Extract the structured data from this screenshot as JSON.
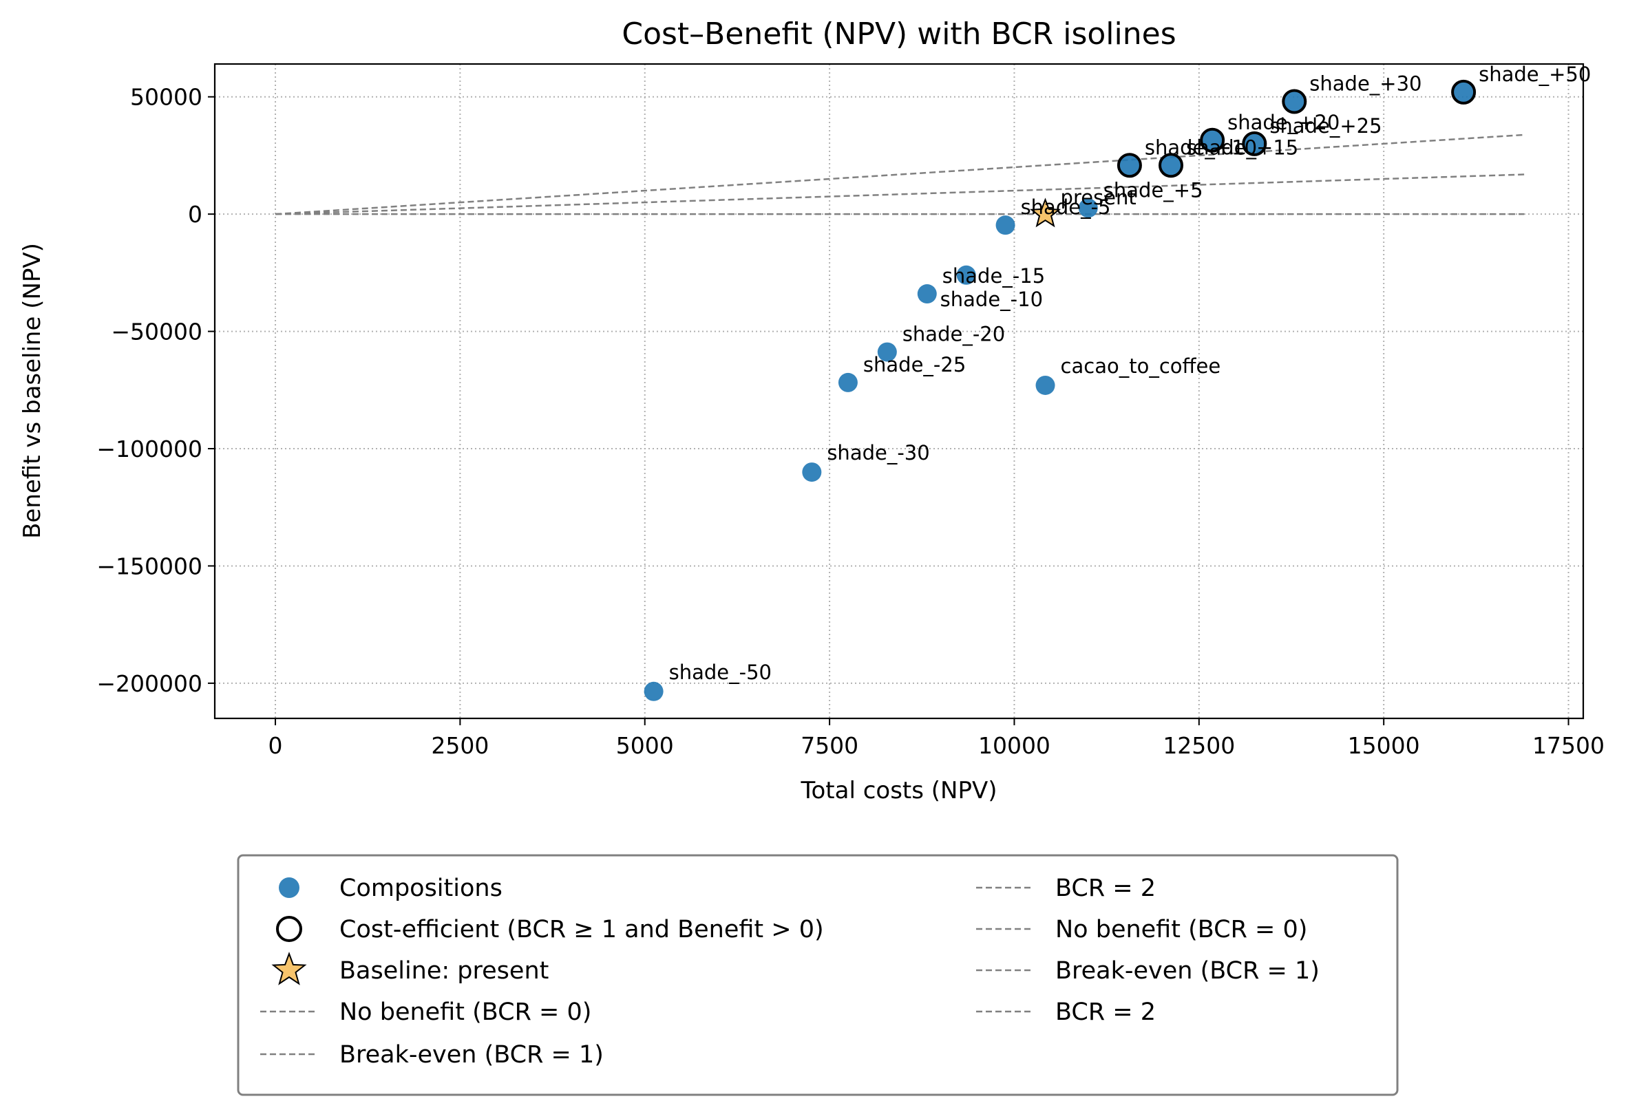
{
  "chart_data": {
    "type": "scatter",
    "title": "Cost–Benefit (NPV) with BCR isolines",
    "xlabel": "Total costs (NPV)",
    "ylabel": "Benefit vs baseline (NPV)",
    "xlim": [
      -820,
      17700
    ],
    "ylim": [
      -215000,
      64000
    ],
    "xticks": [
      0,
      2500,
      5000,
      7500,
      10000,
      12500,
      15000,
      17500
    ],
    "xtick_labels": [
      "0",
      "2500",
      "5000",
      "7500",
      "10000",
      "12500",
      "15000",
      "17500"
    ],
    "yticks": [
      50000,
      0,
      -50000,
      -100000,
      -150000,
      -200000
    ],
    "ytick_labels": [
      "50000",
      "0",
      "−50000",
      "−100000",
      "−150000",
      "−200000"
    ],
    "grid": true,
    "legend_position": "bottom",
    "colors": {
      "points": "#1f77b4",
      "edge_efficient": "#000000",
      "baseline_star": "#f7c46c",
      "isoline": "#808080",
      "grid": "#b0b0b0"
    },
    "points": [
      {
        "label": "shade_-50",
        "x": 5120,
        "y": -203500,
        "efficient": false
      },
      {
        "label": "shade_-30",
        "x": 7260,
        "y": -110000,
        "efficient": false
      },
      {
        "label": "shade_-25",
        "x": 7750,
        "y": -71800,
        "efficient": false
      },
      {
        "label": "shade_-20",
        "x": 8280,
        "y": -58800,
        "efficient": false
      },
      {
        "label": "shade_-15",
        "x": 8820,
        "y": -34000,
        "efficient": false
      },
      {
        "label": "shade_-10",
        "x": 9350,
        "y": -26000,
        "efficient": false
      },
      {
        "label": "shade_-5",
        "x": 9880,
        "y": -4700,
        "efficient": false
      },
      {
        "label": "shade_+5",
        "x": 11000,
        "y": 2600,
        "efficient": false
      },
      {
        "label": "cacao_to_coffee",
        "x": 10420,
        "y": -73000,
        "efficient": false
      },
      {
        "label": "shade_+10",
        "x": 11560,
        "y": 20800,
        "efficient": true
      },
      {
        "label": "shade_+15",
        "x": 12120,
        "y": 20800,
        "efficient": true
      },
      {
        "label": "shade_+20",
        "x": 12680,
        "y": 31500,
        "efficient": true
      },
      {
        "label": "shade_+25",
        "x": 13250,
        "y": 30000,
        "efficient": true
      },
      {
        "label": "shade_+30",
        "x": 13790,
        "y": 48000,
        "efficient": true
      },
      {
        "label": "shade_+50",
        "x": 16080,
        "y": 52000,
        "efficient": true
      }
    ],
    "baseline": {
      "label": "present",
      "x": 10420,
      "y": 0
    },
    "isolines": [
      {
        "name": "No benefit (BCR = 0)",
        "bcr": 0
      },
      {
        "name": "Break-even (BCR = 1)",
        "bcr": 1
      },
      {
        "name": "BCR = 2",
        "bcr": 2
      }
    ],
    "isoline_x_range": [
      0,
      16900
    ],
    "legend": {
      "col1": [
        "Compositions",
        "Cost-efficient (BCR ≥ 1 and Benefit > 0)",
        "Baseline: present",
        "No benefit (BCR = 0)",
        "Break-even (BCR = 1)"
      ],
      "col2": [
        "BCR = 2",
        "No benefit (BCR = 0)",
        "Break-even (BCR = 1)",
        "BCR = 2"
      ]
    }
  }
}
